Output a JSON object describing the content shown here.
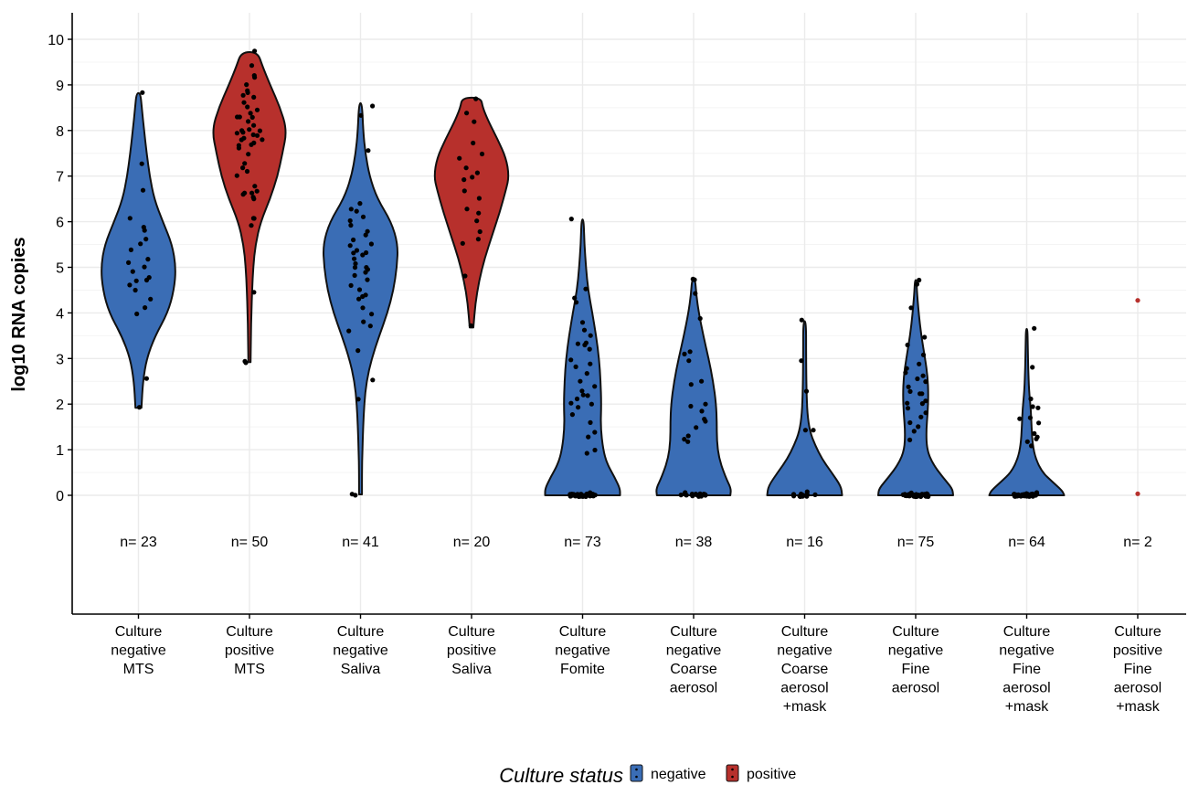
{
  "chart_data": {
    "type": "violin",
    "ylabel": "log10 RNA copies",
    "ylim": [
      0,
      10
    ],
    "yticks": [
      0,
      1,
      2,
      3,
      4,
      5,
      6,
      7,
      8,
      9,
      10
    ],
    "grid": true,
    "categories": [
      "Culture negative MTS",
      "Culture positive MTS",
      "Culture negative Saliva",
      "Culture positive Saliva",
      "Culture negative Fomite",
      "Culture negative Coarse aerosol",
      "Culture negative Coarse aerosol +mask",
      "Culture negative Fine aerosol",
      "Culture negative Fine aerosol +mask",
      "Culture positive Fine aerosol +mask"
    ],
    "category_lines": [
      [
        "Culture",
        "negative",
        "MTS"
      ],
      [
        "Culture",
        "positive",
        "MTS"
      ],
      [
        "Culture",
        "negative",
        "Saliva"
      ],
      [
        "Culture",
        "positive",
        "Saliva"
      ],
      [
        "Culture",
        "negative",
        "Fomite"
      ],
      [
        "Culture",
        "negative",
        "Coarse",
        "aerosol"
      ],
      [
        "Culture",
        "negative",
        "Coarse",
        "aerosol",
        "+mask"
      ],
      [
        "Culture",
        "negative",
        "Fine",
        "aerosol"
      ],
      [
        "Culture",
        "negative",
        "Fine",
        "aerosol",
        "+mask"
      ],
      [
        "Culture",
        "positive",
        "Fine",
        "aerosol",
        "+mask"
      ]
    ],
    "n_labels": [
      "n= 23",
      "n= 50",
      "n= 41",
      "n= 20",
      "n= 73",
      "n= 38",
      "n= 16",
      "n= 75",
      "n= 64",
      "n= 2"
    ],
    "culture_status": [
      "negative",
      "positive",
      "negative",
      "positive",
      "negative",
      "negative",
      "negative",
      "negative",
      "negative",
      "positive"
    ],
    "colors": {
      "negative": "#3a6db5",
      "positive": "#b7302c"
    },
    "legend": {
      "title": "Culture status",
      "entries": [
        "negative",
        "positive"
      ],
      "position": "bottom"
    },
    "series": [
      {
        "range": [
          1.92,
          8.82
        ],
        "density": [
          [
            1.92,
            0.08
          ],
          [
            2.5,
            0.12
          ],
          [
            3.0,
            0.22
          ],
          [
            3.5,
            0.45
          ],
          [
            4.0,
            0.78
          ],
          [
            4.5,
            0.95
          ],
          [
            5.0,
            1.0
          ],
          [
            5.5,
            0.9
          ],
          [
            6.0,
            0.65
          ],
          [
            6.5,
            0.42
          ],
          [
            7.0,
            0.3
          ],
          [
            7.5,
            0.22
          ],
          [
            8.0,
            0.15
          ],
          [
            8.5,
            0.09
          ],
          [
            8.82,
            0.05
          ]
        ],
        "points": [
          8.82,
          7.3,
          6.7,
          6.1,
          5.9,
          5.8,
          5.6,
          5.5,
          5.4,
          5.2,
          5.1,
          5.0,
          4.9,
          4.8,
          4.7,
          4.7,
          4.6,
          4.5,
          4.3,
          4.1,
          4.0,
          2.55,
          1.95
        ]
      },
      {
        "range": [
          2.92,
          9.72
        ],
        "density": [
          [
            2.92,
            0.03
          ],
          [
            3.5,
            0.04
          ],
          [
            4.0,
            0.05
          ],
          [
            4.5,
            0.07
          ],
          [
            5.0,
            0.1
          ],
          [
            5.5,
            0.16
          ],
          [
            6.0,
            0.3
          ],
          [
            6.5,
            0.55
          ],
          [
            7.0,
            0.75
          ],
          [
            7.5,
            0.88
          ],
          [
            8.0,
            1.0
          ],
          [
            8.5,
            0.82
          ],
          [
            9.0,
            0.55
          ],
          [
            9.4,
            0.35
          ],
          [
            9.72,
            0.22
          ]
        ],
        "points": [
          9.72,
          9.4,
          9.2,
          9.15,
          9.0,
          8.9,
          8.8,
          8.75,
          8.7,
          8.6,
          8.5,
          8.45,
          8.4,
          8.3,
          8.3,
          8.2,
          8.1,
          8.05,
          8.0,
          8.0,
          7.95,
          7.9,
          7.9,
          7.85,
          7.8,
          7.8,
          7.75,
          7.7,
          7.7,
          7.6,
          7.5,
          7.3,
          7.2,
          7.1,
          7.0,
          6.8,
          6.7,
          6.65,
          6.6,
          6.6,
          6.55,
          6.5,
          6.1,
          6.05,
          5.9,
          4.45,
          2.95,
          2.9,
          7.95,
          8.3
        ]
      },
      {
        "range": [
          0.02,
          8.6
        ],
        "density": [
          [
            0.02,
            0.04
          ],
          [
            0.5,
            0.04
          ],
          [
            1.0,
            0.05
          ],
          [
            1.5,
            0.07
          ],
          [
            2.0,
            0.1
          ],
          [
            2.5,
            0.16
          ],
          [
            3.0,
            0.3
          ],
          [
            3.5,
            0.5
          ],
          [
            4.0,
            0.72
          ],
          [
            4.5,
            0.88
          ],
          [
            5.0,
            0.97
          ],
          [
            5.5,
            1.0
          ],
          [
            6.0,
            0.82
          ],
          [
            6.5,
            0.45
          ],
          [
            7.0,
            0.24
          ],
          [
            7.5,
            0.13
          ],
          [
            8.0,
            0.07
          ],
          [
            8.6,
            0.04
          ]
        ],
        "points": [
          8.55,
          8.35,
          7.55,
          6.4,
          6.3,
          6.2,
          6.1,
          6.0,
          5.9,
          5.8,
          5.7,
          5.6,
          5.5,
          5.5,
          5.4,
          5.3,
          5.3,
          5.2,
          5.1,
          5.0,
          5.0,
          4.9,
          4.8,
          4.7,
          4.6,
          4.5,
          4.4,
          4.35,
          4.3,
          4.1,
          4.0,
          3.8,
          3.7,
          3.6,
          3.2,
          2.5,
          2.1,
          0.05,
          0.03,
          5.35,
          4.95
        ]
      },
      {
        "range": [
          3.68,
          8.72
        ],
        "density": [
          [
            3.68,
            0.05
          ],
          [
            4.2,
            0.1
          ],
          [
            4.7,
            0.2
          ],
          [
            5.2,
            0.35
          ],
          [
            5.7,
            0.55
          ],
          [
            6.2,
            0.75
          ],
          [
            6.7,
            0.92
          ],
          [
            7.0,
            1.0
          ],
          [
            7.4,
            0.92
          ],
          [
            7.8,
            0.7
          ],
          [
            8.2,
            0.45
          ],
          [
            8.5,
            0.3
          ],
          [
            8.72,
            0.25
          ]
        ],
        "points": [
          8.72,
          8.4,
          8.2,
          7.7,
          7.5,
          7.4,
          7.2,
          7.1,
          7.0,
          6.9,
          6.7,
          6.5,
          6.3,
          6.2,
          6.0,
          5.8,
          5.6,
          5.5,
          4.8,
          3.72
        ]
      },
      {
        "range": [
          0.0,
          6.05
        ],
        "density": [
          [
            0.0,
            1.0
          ],
          [
            0.15,
            1.0
          ],
          [
            0.4,
            0.85
          ],
          [
            0.7,
            0.65
          ],
          [
            1.0,
            0.55
          ],
          [
            1.5,
            0.48
          ],
          [
            2.0,
            0.5
          ],
          [
            2.5,
            0.48
          ],
          [
            3.0,
            0.44
          ],
          [
            3.5,
            0.36
          ],
          [
            4.0,
            0.26
          ],
          [
            4.5,
            0.15
          ],
          [
            5.0,
            0.09
          ],
          [
            5.5,
            0.05
          ],
          [
            6.05,
            0.03
          ]
        ],
        "points": [
          6.05,
          4.55,
          4.3,
          4.25,
          3.8,
          3.6,
          3.5,
          3.35,
          3.3,
          3.3,
          3.2,
          3.0,
          2.9,
          2.8,
          2.7,
          2.5,
          2.4,
          2.3,
          2.2,
          2.2,
          2.1,
          2.0,
          2.0,
          1.9,
          1.8,
          1.6,
          1.4,
          1.3,
          1.0,
          0.9,
          0.05,
          0.03,
          0.02,
          0.01,
          0.0,
          0.0,
          0.0,
          0.0,
          0.0,
          0.0,
          0.0,
          0.0,
          0.0,
          0.0,
          0.0,
          0.0,
          0.0,
          0.0,
          0.0,
          0.0,
          0.0,
          0.0,
          0.0,
          0.0,
          0.0,
          0.0,
          0.0,
          0.0,
          0.0,
          0.0,
          0.0,
          0.0,
          0.0,
          0.0,
          0.0,
          0.0,
          0.0,
          0.0,
          0.0,
          0.0,
          0.0,
          0.0,
          0.0
        ]
      },
      {
        "range": [
          0.0,
          4.75
        ],
        "density": [
          [
            0.0,
            0.98
          ],
          [
            0.15,
            1.0
          ],
          [
            0.4,
            0.85
          ],
          [
            0.8,
            0.68
          ],
          [
            1.2,
            0.62
          ],
          [
            1.6,
            0.62
          ],
          [
            2.0,
            0.6
          ],
          [
            2.5,
            0.52
          ],
          [
            3.0,
            0.4
          ],
          [
            3.5,
            0.26
          ],
          [
            4.0,
            0.14
          ],
          [
            4.4,
            0.07
          ],
          [
            4.75,
            0.04
          ]
        ],
        "points": [
          4.75,
          4.7,
          4.45,
          3.9,
          3.15,
          3.1,
          2.95,
          2.5,
          2.45,
          2.0,
          1.95,
          1.85,
          1.7,
          1.6,
          1.5,
          1.3,
          1.25,
          1.15,
          0.05,
          0.03,
          0.02,
          0.01,
          0.0,
          0.0,
          0.0,
          0.0,
          0.0,
          0.0,
          0.0,
          0.0,
          0.0,
          0.0,
          0.0,
          0.0,
          0.0,
          0.0,
          0.0,
          0.0
        ]
      },
      {
        "range": [
          0.0,
          3.82
        ],
        "density": [
          [
            0.0,
            1.0
          ],
          [
            0.2,
            0.97
          ],
          [
            0.5,
            0.72
          ],
          [
            0.8,
            0.46
          ],
          [
            1.1,
            0.28
          ],
          [
            1.4,
            0.14
          ],
          [
            1.8,
            0.07
          ],
          [
            2.3,
            0.05
          ],
          [
            3.0,
            0.04
          ],
          [
            3.82,
            0.04
          ]
        ],
        "points": [
          3.82,
          2.95,
          2.3,
          1.4,
          1.4,
          0.05,
          0.02,
          0.0,
          0.0,
          0.0,
          0.0,
          0.0,
          0.0,
          0.0,
          0.0,
          0.0
        ]
      },
      {
        "range": [
          0.0,
          4.72
        ],
        "density": [
          [
            0.0,
            1.0
          ],
          [
            0.15,
            0.98
          ],
          [
            0.4,
            0.72
          ],
          [
            0.7,
            0.45
          ],
          [
            1.0,
            0.3
          ],
          [
            1.4,
            0.28
          ],
          [
            1.8,
            0.32
          ],
          [
            2.2,
            0.34
          ],
          [
            2.6,
            0.32
          ],
          [
            3.0,
            0.25
          ],
          [
            3.5,
            0.15
          ],
          [
            4.0,
            0.08
          ],
          [
            4.4,
            0.04
          ],
          [
            4.72,
            0.02
          ]
        ],
        "points": [
          4.72,
          4.6,
          4.1,
          3.45,
          3.3,
          3.1,
          2.9,
          2.8,
          2.7,
          2.6,
          2.55,
          2.5,
          2.4,
          2.3,
          2.25,
          2.2,
          2.1,
          2.0,
          2.0,
          1.9,
          1.8,
          1.7,
          1.6,
          1.5,
          1.4,
          1.2,
          0.05,
          0.03,
          0.02,
          0.01,
          0.0,
          0.0,
          0.0,
          0.0,
          0.0,
          0.0,
          0.0,
          0.0,
          0.0,
          0.0,
          0.0,
          0.0,
          0.0,
          0.0,
          0.0,
          0.0,
          0.0,
          0.0,
          0.0,
          0.0,
          0.0,
          0.0,
          0.0,
          0.0,
          0.0,
          0.0,
          0.0,
          0.0,
          0.0,
          0.0,
          0.0,
          0.0,
          0.0,
          0.0,
          0.0,
          0.0,
          0.0,
          0.0,
          0.0,
          0.0,
          0.0,
          0.0,
          0.0,
          0.0,
          0.0
        ]
      },
      {
        "range": [
          0.0,
          3.65
        ],
        "density": [
          [
            0.0,
            1.0
          ],
          [
            0.1,
            0.95
          ],
          [
            0.3,
            0.68
          ],
          [
            0.5,
            0.42
          ],
          [
            0.8,
            0.24
          ],
          [
            1.1,
            0.16
          ],
          [
            1.5,
            0.13
          ],
          [
            1.9,
            0.11
          ],
          [
            2.3,
            0.06
          ],
          [
            2.8,
            0.04
          ],
          [
            3.3,
            0.03
          ],
          [
            3.65,
            0.02
          ]
        ],
        "points": [
          3.65,
          2.8,
          2.1,
          1.95,
          1.9,
          1.7,
          1.65,
          1.6,
          1.35,
          1.3,
          1.25,
          1.2,
          1.1,
          0.03,
          0.02,
          0.01,
          0.0,
          0.0,
          0.0,
          0.0,
          0.0,
          0.0,
          0.0,
          0.0,
          0.0,
          0.0,
          0.0,
          0.0,
          0.0,
          0.0,
          0.0,
          0.0,
          0.0,
          0.0,
          0.0,
          0.0,
          0.0,
          0.0,
          0.0,
          0.0,
          0.0,
          0.0,
          0.0,
          0.0,
          0.0,
          0.0,
          0.0,
          0.0,
          0.0,
          0.0,
          0.0,
          0.0,
          0.0,
          0.0,
          0.0,
          0.0,
          0.0,
          0.0,
          0.0,
          0.0,
          0.0,
          0.0,
          0.0,
          0.0
        ]
      },
      {
        "range": null,
        "density": [],
        "points": [
          4.3,
          0.02
        ]
      }
    ]
  }
}
